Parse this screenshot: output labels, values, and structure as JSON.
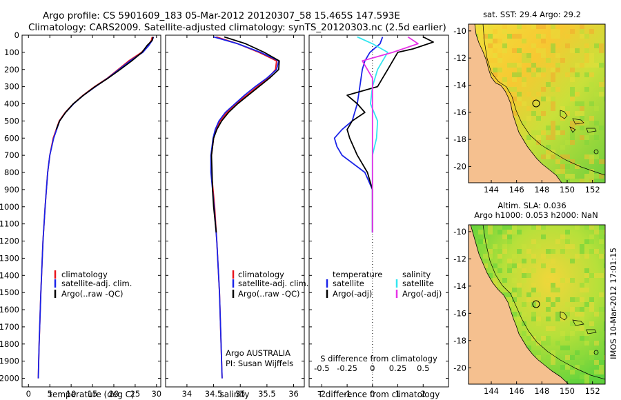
{
  "header": {
    "line1": "Argo profile: CS 5901609_183 05-Mar-2012 20120307_58 15.465S 147.593E",
    "line2": "Climatology: CARS2009. Satellite-adjusted climatology: synTS_20120303.nc (2.5d earlier)"
  },
  "colors": {
    "climatology": "#e8141c",
    "satellite": "#1a23e8",
    "argo": "#000000",
    "salinity_satellite": "#33e6f0",
    "salinity_argo": "#e633e6",
    "land": "#f5c08f"
  },
  "chart_data": [
    {
      "type": "line",
      "id": "temperature",
      "xlabel": "temperature (deg C)",
      "ylabel": "",
      "xlim": [
        -1.5,
        31
      ],
      "ylim": [
        2050,
        0
      ],
      "x_ticks": [
        0,
        5,
        10,
        15,
        20,
        25,
        30
      ],
      "y_ticks": [
        0,
        100,
        200,
        300,
        400,
        500,
        600,
        700,
        800,
        900,
        1000,
        1100,
        1200,
        1300,
        1400,
        1500,
        1600,
        1700,
        1800,
        1900,
        2000
      ],
      "legend": [
        "climatology",
        "satellite-adj. clim.",
        "Argo(..raw -QC)"
      ],
      "series": [
        {
          "name": "climatology",
          "color": "#e8141c",
          "depth": [
            10,
            30,
            60,
            100,
            150,
            200,
            250,
            300,
            350,
            400,
            450,
            500,
            600,
            700,
            800,
            1000,
            1200,
            1500,
            1800,
            2000
          ],
          "values": [
            29.0,
            28.8,
            28.0,
            26.5,
            23.5,
            21.0,
            18.5,
            15.5,
            12.8,
            10.5,
            8.6,
            7.2,
            5.8,
            5.0,
            4.5,
            3.9,
            3.4,
            2.9,
            2.5,
            2.3
          ]
        },
        {
          "name": "satellite-adj. clim.",
          "color": "#1a23e8",
          "depth": [
            10,
            30,
            60,
            100,
            150,
            200,
            250,
            300,
            350,
            400,
            450,
            500,
            600,
            700,
            800,
            1000,
            1200,
            1500,
            1800,
            2000
          ],
          "values": [
            29.3,
            29.0,
            28.2,
            26.8,
            23.8,
            21.2,
            18.6,
            15.7,
            12.9,
            10.6,
            8.7,
            7.3,
            5.9,
            5.0,
            4.5,
            3.9,
            3.4,
            2.9,
            2.5,
            2.3
          ]
        },
        {
          "name": "Argo(..raw -QC)",
          "color": "#000000",
          "depth": [
            10,
            30,
            60,
            100,
            150,
            200,
            250,
            300,
            350,
            400,
            450,
            500,
            550
          ],
          "values": [
            29.2,
            29.0,
            27.8,
            26.6,
            24.2,
            21.5,
            18.7,
            15.6,
            12.9,
            10.5,
            8.7,
            7.3,
            6.5
          ]
        }
      ]
    },
    {
      "type": "line",
      "id": "salinity",
      "xlabel": "salinity",
      "ylabel": "",
      "xlim": [
        33.6,
        36.2
      ],
      "ylim": [
        2050,
        0
      ],
      "x_ticks": [
        34,
        34.5,
        35,
        35.5,
        36
      ],
      "legend": [
        "climatology",
        "satellite-adj. clim.",
        "Argo(..raw -QC)"
      ],
      "annotation": [
        "Argo AUSTRALIA",
        "PI: Susan Wijffels"
      ],
      "series": [
        {
          "name": "climatology",
          "color": "#e8141c",
          "depth": [
            10,
            50,
            100,
            150,
            200,
            250,
            300,
            350,
            400,
            450,
            500,
            550,
            600,
            700,
            800,
            900,
            1000,
            1200,
            1500,
            1800,
            2000
          ],
          "values": [
            34.55,
            34.95,
            35.35,
            35.68,
            35.66,
            35.52,
            35.32,
            35.12,
            34.92,
            34.75,
            34.62,
            34.55,
            34.5,
            34.46,
            34.46,
            34.49,
            34.52,
            34.56,
            34.61,
            34.64,
            34.66
          ]
        },
        {
          "name": "satellite-adj. clim.",
          "color": "#1a23e8",
          "depth": [
            10,
            50,
            100,
            150,
            200,
            250,
            300,
            350,
            400,
            450,
            500,
            550,
            600,
            700,
            800,
            900,
            1000,
            1200,
            1500,
            1800,
            2000
          ],
          "values": [
            34.5,
            34.95,
            35.38,
            35.72,
            35.68,
            35.5,
            35.28,
            35.08,
            34.9,
            34.72,
            34.6,
            34.53,
            34.49,
            34.45,
            34.45,
            34.48,
            34.51,
            34.56,
            34.61,
            34.64,
            34.66
          ]
        },
        {
          "name": "Argo(..raw -QC)",
          "color": "#000000",
          "depth": [
            10,
            50,
            100,
            150,
            200,
            250,
            300,
            350,
            400,
            450,
            500,
            550,
            600,
            700,
            800,
            900,
            1000,
            1150
          ],
          "values": [
            34.7,
            35.1,
            35.45,
            35.73,
            35.72,
            35.55,
            35.35,
            35.15,
            34.95,
            34.78,
            34.65,
            34.56,
            34.5,
            34.46,
            34.47,
            34.48,
            34.5,
            34.55
          ]
        }
      ]
    },
    {
      "type": "line",
      "id": "difference",
      "xlabel": "T difference from climatology",
      "x2label": "S difference from climatology",
      "xlim": [
        -2.5,
        3
      ],
      "ylim": [
        2050,
        0
      ],
      "x_ticks": [
        -2,
        -1,
        0,
        1,
        2
      ],
      "x2_ticks": [
        "-0.5",
        "-0.25",
        "0",
        "0.25",
        "0.5"
      ],
      "legend_headers": [
        "temperature",
        "salinity"
      ],
      "legend": [
        "satellite",
        "Argo(-adj)",
        "satellite",
        "Argo(-adj)"
      ],
      "series": [
        {
          "name": "satellite",
          "quantity": "temperature",
          "color": "#1a23e8",
          "depth": [
            10,
            50,
            100,
            150,
            200,
            300,
            400,
            500,
            550,
            600,
            650,
            700,
            800,
            900,
            1000,
            1150
          ],
          "values": [
            0.4,
            0.3,
            -0.1,
            -0.3,
            -0.4,
            -0.5,
            -0.6,
            -0.8,
            -1.2,
            -1.5,
            -1.4,
            -1.2,
            -0.3,
            0,
            0,
            0
          ]
        },
        {
          "name": "Argo(-adj)",
          "quantity": "temperature",
          "color": "#000000",
          "depth": [
            10,
            40,
            80,
            100,
            150,
            200,
            250,
            300,
            350,
            400,
            450,
            500,
            550,
            600,
            700,
            800,
            900,
            1000,
            1150
          ],
          "values": [
            2.0,
            2.4,
            1.6,
            1.0,
            0.8,
            0.6,
            0.4,
            0.2,
            -1.0,
            -0.6,
            -0.3,
            -0.8,
            -1.0,
            -0.9,
            -0.6,
            -0.2,
            0,
            0,
            0
          ]
        },
        {
          "name": "satellite",
          "quantity": "salinity",
          "color": "#33e6f0",
          "depth": [
            10,
            50,
            100,
            150,
            200,
            300,
            400,
            500,
            600,
            700,
            800,
            900,
            1000,
            1150
          ],
          "values": [
            -0.15,
            0.0,
            0.15,
            0.1,
            0.05,
            0.0,
            -0.02,
            0.05,
            0.04,
            0.0,
            0.0,
            0.0,
            0.0,
            0.0
          ]
        },
        {
          "name": "Argo(-adj)",
          "quantity": "salinity",
          "color": "#e633e6",
          "depth": [
            10,
            50,
            100,
            150,
            200,
            250,
            300,
            400,
            1150
          ],
          "values": [
            0.35,
            0.45,
            0.2,
            -0.1,
            -0.05,
            0.0,
            0.0,
            0.0,
            0.0
          ]
        }
      ]
    }
  ],
  "maps": [
    {
      "title": "sat. SST: 29.4 Argo: 29.2",
      "x_ticks": [
        "144",
        "146",
        "148",
        "150",
        "152"
      ],
      "y_ticks": [
        "-10",
        "-12",
        "-14",
        "-16",
        "-18",
        "-20"
      ],
      "lat_range": [
        -21.2,
        -9.5
      ],
      "lon_range": [
        142.2,
        153
      ],
      "float_lat": -15.465,
      "float_lon": 147.593
    },
    {
      "title_line1": "Altim. SLA: 0.036",
      "title_line2": "Argo h1000: 0.053 h2000: NaN",
      "x_ticks": [
        "144",
        "146",
        "148",
        "150",
        "152"
      ],
      "y_ticks": [
        "-10",
        "-12",
        "-14",
        "-16",
        "-18",
        "-20"
      ],
      "lat_range": [
        -21.2,
        -9.5
      ],
      "lon_range": [
        142.2,
        153
      ],
      "float_lat": -15.465,
      "float_lon": 147.593
    }
  ],
  "footer": {
    "stamp": "IMOS 10-Mar-2012 17:01:15"
  }
}
